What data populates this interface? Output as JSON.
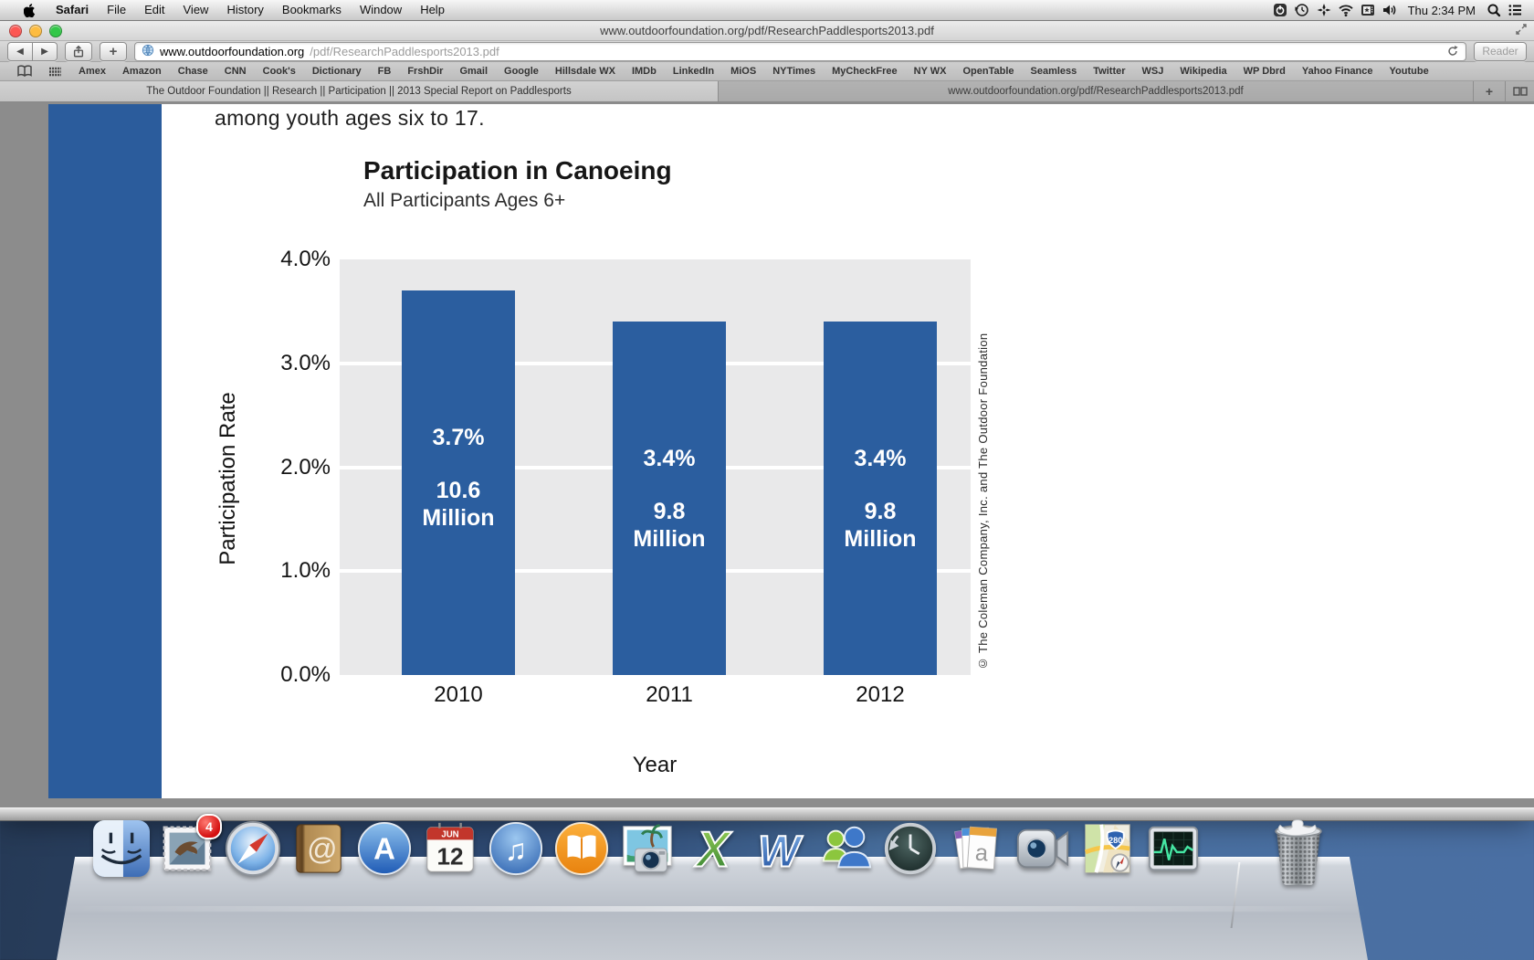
{
  "menu_bar": {
    "items": [
      "Safari",
      "File",
      "Edit",
      "View",
      "History",
      "Bookmarks",
      "Window",
      "Help"
    ],
    "status_icons": [
      "power-status-icon",
      "time-machine-status-icon",
      "sparkle-status-icon",
      "wifi-status-icon",
      "input-source-status-icon",
      "volume-status-icon"
    ],
    "clock": "Thu 2:34 PM",
    "right_icons": [
      "spotlight-icon",
      "notification-center-icon"
    ]
  },
  "window": {
    "title": "www.outdoorfoundation.org/pdf/ResearchPaddlesports2013.pdf",
    "toolbar": {
      "back_glyph": "◀",
      "forward_glyph": "▶",
      "add_label": "+",
      "url_domain": "www.outdoorfoundation.org",
      "url_path": "/pdf/ResearchPaddlesports2013.pdf",
      "reader_label": "Reader"
    }
  },
  "bookmarks_bar": {
    "items": [
      "Amex",
      "Amazon",
      "Chase",
      "CNN",
      "Cook's",
      "Dictionary",
      "FB",
      "FrshDir",
      "Gmail",
      "Google",
      "Hillsdale WX",
      "IMDb",
      "LinkedIn",
      "MiOS",
      "NYTimes",
      "MyCheckFree",
      "NY WX",
      "OpenTable",
      "Seamless",
      "Twitter",
      "WSJ",
      "Wikipedia",
      "WP Dbrd",
      "Yahoo Finance",
      "Youtube"
    ]
  },
  "tab_bar": {
    "tabs": [
      {
        "title": "The Outdoor Foundation || Research || Participation || 2013 Special Report on Paddlesports",
        "active": true
      },
      {
        "title": "www.outdoorfoundation.org/pdf/ResearchPaddlesports2013.pdf",
        "active": false
      }
    ],
    "new_tab_label": "+"
  },
  "pdf": {
    "intro_text": "among youth ages six to 17."
  },
  "chart_data": {
    "type": "bar",
    "title": "Participation in Canoeing",
    "subtitle": "All Participants Ages 6+",
    "categories": [
      "2010",
      "2011",
      "2012"
    ],
    "values": [
      3.7,
      3.4,
      3.4
    ],
    "bar_labels": [
      {
        "pct": "3.7%",
        "amount_lines": [
          "10.6",
          "Million"
        ]
      },
      {
        "pct": "3.4%",
        "amount_lines": [
          "9.8",
          "Million"
        ]
      },
      {
        "pct": "3.4%",
        "amount_lines": [
          "9.8",
          "Million"
        ]
      }
    ],
    "xlabel": "Year",
    "ylabel": "Participation Rate",
    "yticks": [
      "4.0%",
      "3.0%",
      "2.0%",
      "1.0%",
      "0.0%"
    ],
    "ylim": [
      0,
      4
    ],
    "grid": true,
    "bar_color": "#2b5e9f",
    "plot_bg": "#e9e9ea",
    "credit": "© The Coleman Company, Inc. and The Outdoor Foundation"
  },
  "dock": {
    "items": [
      {
        "name": "finder"
      },
      {
        "name": "mail",
        "badge": "4"
      },
      {
        "name": "safari"
      },
      {
        "name": "contacts",
        "glyph": "@"
      },
      {
        "name": "app-store",
        "glyph": "A"
      },
      {
        "name": "calendar",
        "month": "JUN",
        "day": "12"
      },
      {
        "name": "itunes"
      },
      {
        "name": "ibooks"
      },
      {
        "name": "iphoto"
      },
      {
        "name": "excel",
        "glyph": "X"
      },
      {
        "name": "word",
        "glyph": "W"
      },
      {
        "name": "messenger"
      },
      {
        "name": "time-machine"
      },
      {
        "name": "documents-stack",
        "glyph": "a"
      },
      {
        "name": "facetime"
      },
      {
        "name": "maps",
        "route_badge": "280"
      },
      {
        "name": "activity-monitor"
      }
    ],
    "trash": {
      "name": "trash"
    }
  }
}
